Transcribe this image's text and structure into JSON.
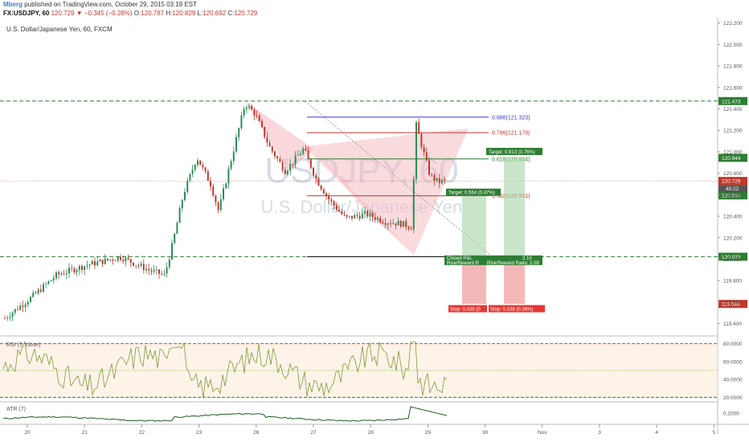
{
  "header": {
    "author": "Mberg",
    "published": "published on TradingView.com, October 29, 2015 03:19 EST",
    "symbol": "FX:USDJPY, 60",
    "last": "120.729",
    "change": "▼ −0.345 (−0.28%)",
    "o_label": "O:",
    "o_val": "120.787",
    "h_label": "H:",
    "h_val": "120.829",
    "l_label": "L:",
    "l_val": "120.692",
    "c_label": "C:",
    "c_val": "120.729"
  },
  "subtitle": "U.S. Dollar/Japanese Yen, 60, FXCM",
  "watermark": {
    "symbol": "USDJPY, 60",
    "name": "U.S. Dollar/Japanese Yen"
  },
  "colors": {
    "up": "#2e8b57",
    "down": "#c0392b",
    "green_dash": "#2e7d32",
    "pattern": "#f4b7bd"
  },
  "chart_data": {
    "type": "candlestick",
    "price_ticks": [
      "122.200",
      "122.000",
      "121.800",
      "121.600",
      "121.400",
      "121.200",
      "121.000",
      "120.800",
      "120.600",
      "120.400",
      "120.200",
      "120.000",
      "119.800",
      "119.600",
      "119.400"
    ],
    "date_ticks": [
      "20",
      "21",
      "22",
      "23",
      "26",
      "27",
      "28",
      "29",
      "30",
      "Nov",
      "3",
      "4",
      "5"
    ],
    "ylim": [
      119.3,
      122.25
    ],
    "horizontal_levels": [
      {
        "label": "121.473",
        "value": 121.473
      },
      {
        "label": "120.944",
        "value": 120.944
      },
      {
        "label": "120.594",
        "value": 120.594
      },
      {
        "label": "120.023",
        "value": 120.023
      }
    ],
    "current_price": "120.729",
    "countdown": "40:22",
    "stop_label_axis": "119.583",
    "fib_levels": [
      {
        "text": "0.886(121.323)",
        "value": 121.323,
        "color": "#3a3ad6"
      },
      {
        "text": "0.786(121.178)",
        "value": 121.178,
        "color": "#c0392b"
      },
      {
        "text": "0.618(120.934)",
        "value": 120.934,
        "color": "#2e7d32"
      },
      {
        "text": "0.382(120.591)",
        "value": 120.591,
        "color": "#c0392b"
      }
    ],
    "targets": [
      {
        "text": "Target: 0.913 (0.76%)"
      },
      {
        "text": "Target: 0.564 (0.47%)"
      }
    ],
    "stops": [
      {
        "text": "Stop: 0.438 (0"
      },
      {
        "text": "Stop: 0.438 (0.36%)"
      }
    ],
    "rr": [
      {
        "text": "Risk/Reward R"
      },
      {
        "text": "Risk/Reward Ratio: 2.08"
      }
    ],
    "closed": "Closed P&L",
    "closed_values": [
      "2.10"
    ],
    "rsi": {
      "label": "RSI (7, close)",
      "ticks": [
        "80.0000",
        "60.0000",
        "40.0000",
        "20.0000"
      ]
    },
    "atr": {
      "label": "ATR (7)",
      "ticks": [
        "0.2000"
      ]
    }
  }
}
